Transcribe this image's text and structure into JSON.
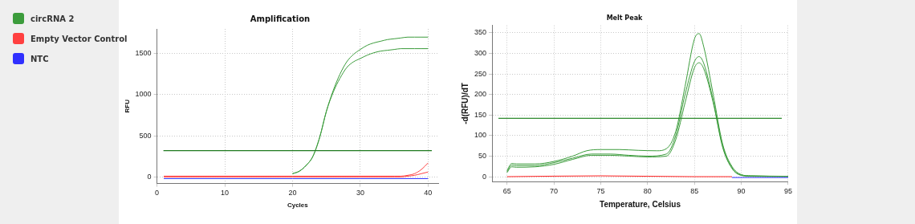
{
  "chart_data": [
    {
      "type": "line",
      "title": "Amplification",
      "xlabel": "Cycles",
      "ylabel": "RFU",
      "xlim": [
        0,
        41.5
      ],
      "ylim": [
        -80,
        1800
      ],
      "xticks": [
        0,
        10,
        20,
        30,
        40
      ],
      "yticks": [
        0,
        500,
        1000,
        1500
      ],
      "grid": true,
      "legend": "left",
      "marker": "none",
      "series": [
        {
          "name": "circRNA 2",
          "color": "#3c9c3c",
          "x": [
            20,
            21,
            22,
            23,
            24,
            25,
            26,
            27,
            28,
            29,
            30,
            31,
            32,
            33,
            34,
            35,
            36,
            37,
            38,
            39,
            40
          ],
          "values": [
            40,
            70,
            140,
            250,
            480,
            800,
            1050,
            1250,
            1400,
            1490,
            1550,
            1600,
            1630,
            1650,
            1670,
            1680,
            1690,
            1700,
            1700,
            1700,
            1700
          ]
        },
        {
          "color": "#3c9c3c",
          "x": [
            20,
            21,
            22,
            23,
            24,
            25,
            26,
            27,
            28,
            29,
            30,
            31,
            32,
            33,
            34,
            35,
            36,
            37,
            38,
            39,
            40
          ],
          "values": [
            40,
            70,
            140,
            250,
            480,
            800,
            1030,
            1200,
            1330,
            1400,
            1440,
            1480,
            1510,
            1530,
            1540,
            1550,
            1560,
            1560,
            1560,
            1560,
            1560
          ]
        },
        {
          "name": "Empty Vector Control",
          "color": "#ff4040",
          "x": [
            1,
            10,
            20,
            30,
            35,
            36,
            37,
            38,
            39,
            40
          ],
          "values": [
            10,
            10,
            10,
            10,
            10,
            10,
            20,
            40,
            90,
            170
          ]
        },
        {
          "color": "#ff4040",
          "x": [
            1,
            10,
            20,
            30,
            35,
            36,
            37,
            38,
            39,
            40
          ],
          "values": [
            0,
            0,
            0,
            0,
            0,
            0,
            10,
            20,
            40,
            60
          ]
        },
        {
          "name": "NTC",
          "color": "#3030ff",
          "x": [
            1,
            10,
            20,
            30,
            40
          ],
          "values": [
            -20,
            -20,
            -20,
            -20,
            -20
          ]
        }
      ],
      "ref_lines": [
        {
          "axis": "y",
          "value": 320,
          "color": "#1e7a1e"
        }
      ]
    },
    {
      "type": "line",
      "title": "Melt Peak",
      "xlabel": "Temperature, Celsius",
      "ylabel": "-d(RFU)/dT",
      "xlim": [
        63.4,
        95
      ],
      "ylim": [
        -12,
        368
      ],
      "xticks": [
        65,
        70,
        75,
        80,
        85,
        90,
        95
      ],
      "yticks": [
        0,
        50,
        100,
        150,
        200,
        250,
        300,
        350
      ],
      "grid": true,
      "marker": "none",
      "series": [
        {
          "color": "#3c9c3c",
          "x": [
            65,
            65.5,
            66,
            68,
            70,
            72,
            73.5,
            75,
            77,
            79,
            81,
            82,
            83,
            84,
            85,
            85.5,
            86,
            87,
            88,
            89,
            90,
            91,
            95
          ],
          "values": [
            15,
            32,
            31,
            31,
            37,
            50,
            63,
            66,
            66,
            64,
            63,
            68,
            110,
            220,
            335,
            348,
            315,
            200,
            80,
            25,
            5,
            2,
            1
          ]
        },
        {
          "color": "#3c9c3c",
          "x": [
            65,
            65.5,
            66,
            68,
            70,
            72,
            74,
            76,
            78,
            80,
            82,
            83,
            84,
            85,
            85.5,
            86,
            87,
            88,
            89,
            90,
            91,
            95
          ],
          "values": [
            12,
            28,
            27,
            27,
            34,
            45,
            55,
            55,
            52,
            50,
            55,
            100,
            200,
            280,
            292,
            275,
            185,
            75,
            22,
            4,
            2,
            1
          ]
        },
        {
          "color": "#3c9c3c",
          "x": [
            65,
            65.5,
            66,
            68,
            70,
            72,
            74,
            76,
            78,
            80,
            82,
            83,
            84,
            85,
            85.5,
            86,
            87,
            88,
            89,
            90,
            91,
            95
          ],
          "values": [
            10,
            24,
            23,
            24,
            30,
            42,
            52,
            52,
            50,
            48,
            50,
            90,
            180,
            265,
            277,
            262,
            180,
            72,
            20,
            3,
            1,
            0
          ]
        },
        {
          "color": "#ff2020",
          "x": [
            65,
            75,
            85,
            89
          ],
          "values": [
            0,
            2,
            0,
            0
          ]
        },
        {
          "color": "#3030ff",
          "x": [
            89,
            95
          ],
          "values": [
            -2,
            -2
          ]
        }
      ],
      "ref_lines": [
        {
          "axis": "y",
          "value": 142,
          "color": "#2e8b2e"
        }
      ]
    }
  ]
}
